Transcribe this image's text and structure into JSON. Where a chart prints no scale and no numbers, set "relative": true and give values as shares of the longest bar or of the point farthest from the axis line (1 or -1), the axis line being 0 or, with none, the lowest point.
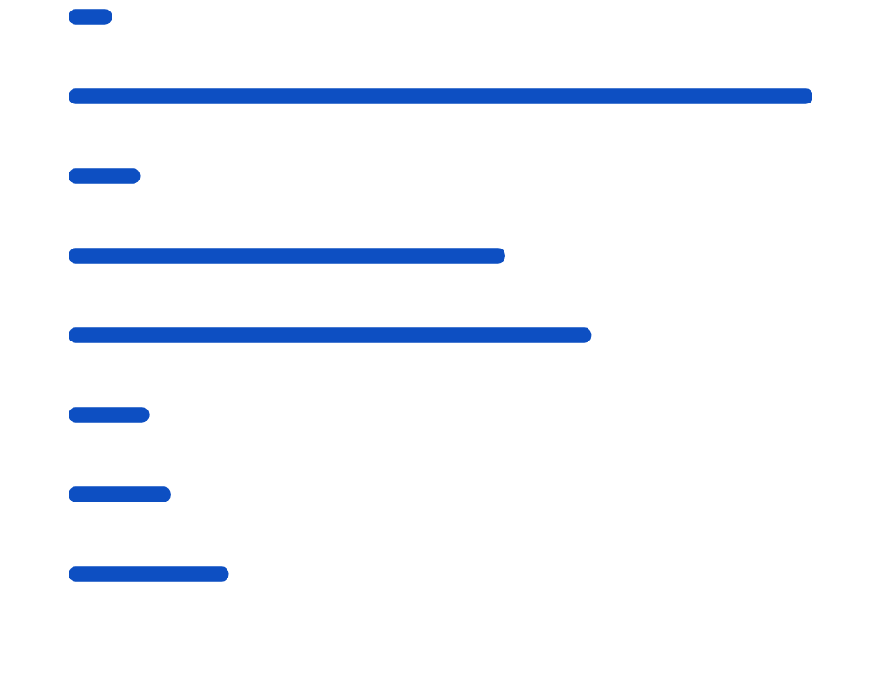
{
  "chart_data": {
    "type": "bar",
    "orientation": "horizontal",
    "relative": true,
    "categories": [
      null,
      null,
      null,
      null,
      null,
      null,
      null,
      null
    ],
    "series": [
      {
        "color": "#0d4fc2",
        "values": [
          0.057,
          1,
          0.095,
          0.586,
          0.702,
          0.107,
          0.136,
          0.214
        ]
      }
    ],
    "legend": false
  }
}
